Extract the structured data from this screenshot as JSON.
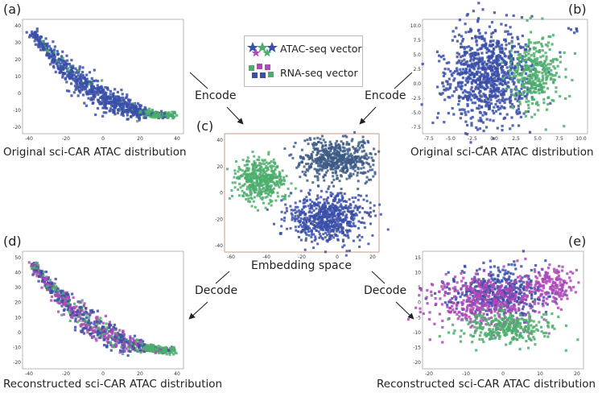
{
  "panels": {
    "a": {
      "letter": "(a)",
      "caption": "Original sci-CAR ATAC distribution",
      "xticks": [
        "-40",
        "-20",
        "0",
        "20",
        "40"
      ],
      "yticks": [
        "40",
        "30",
        "20",
        "10",
        "0",
        "-10",
        "-20"
      ]
    },
    "b": {
      "letter": "(b)",
      "caption": "Original sci-CAR ATAC distribution",
      "xticks": [
        "-7.5",
        "-5.0",
        "-2.5",
        "0.0",
        "2.5",
        "5.0",
        "7.5",
        "10.0"
      ],
      "yticks": [
        "10.0",
        "7.5",
        "5.0",
        "2.5",
        "0.0",
        "-2.5",
        "-5.0",
        "-7.5"
      ]
    },
    "c": {
      "letter": "(c)",
      "caption": "Embedding space",
      "xticks": [
        "-60",
        "-40",
        "-20",
        "0",
        "20"
      ],
      "yticks": [
        "40",
        "20",
        "0",
        "-20",
        "-40"
      ]
    },
    "d": {
      "letter": "(d)",
      "caption": "Reconstructed sci-CAR ATAC distribution",
      "xticks": [
        "-40",
        "-20",
        "0",
        "20",
        "40"
      ],
      "yticks": [
        "50",
        "40",
        "30",
        "20",
        "10",
        "0",
        "-10",
        "-20"
      ]
    },
    "e": {
      "letter": "(e)",
      "caption": "Reconstructed sci-CAR ATAC distribution",
      "xticks": [
        "-20",
        "-10",
        "0",
        "10",
        "20"
      ],
      "yticks": [
        "15",
        "10",
        "5",
        "0",
        "-5",
        "-10",
        "-15",
        "-20"
      ]
    }
  },
  "legend": {
    "atac_label": "ATAC-seq vector",
    "rna_label": "RNA-seq vector"
  },
  "arrows": {
    "encode_left": "Encode",
    "encode_right": "Encode",
    "decode_left": "Decode",
    "decode_right": "Decode"
  },
  "colors": {
    "blue": "#3a4fa8",
    "green": "#4cae6c",
    "purple": "#b048b8",
    "dark": "#3d5a86"
  }
}
